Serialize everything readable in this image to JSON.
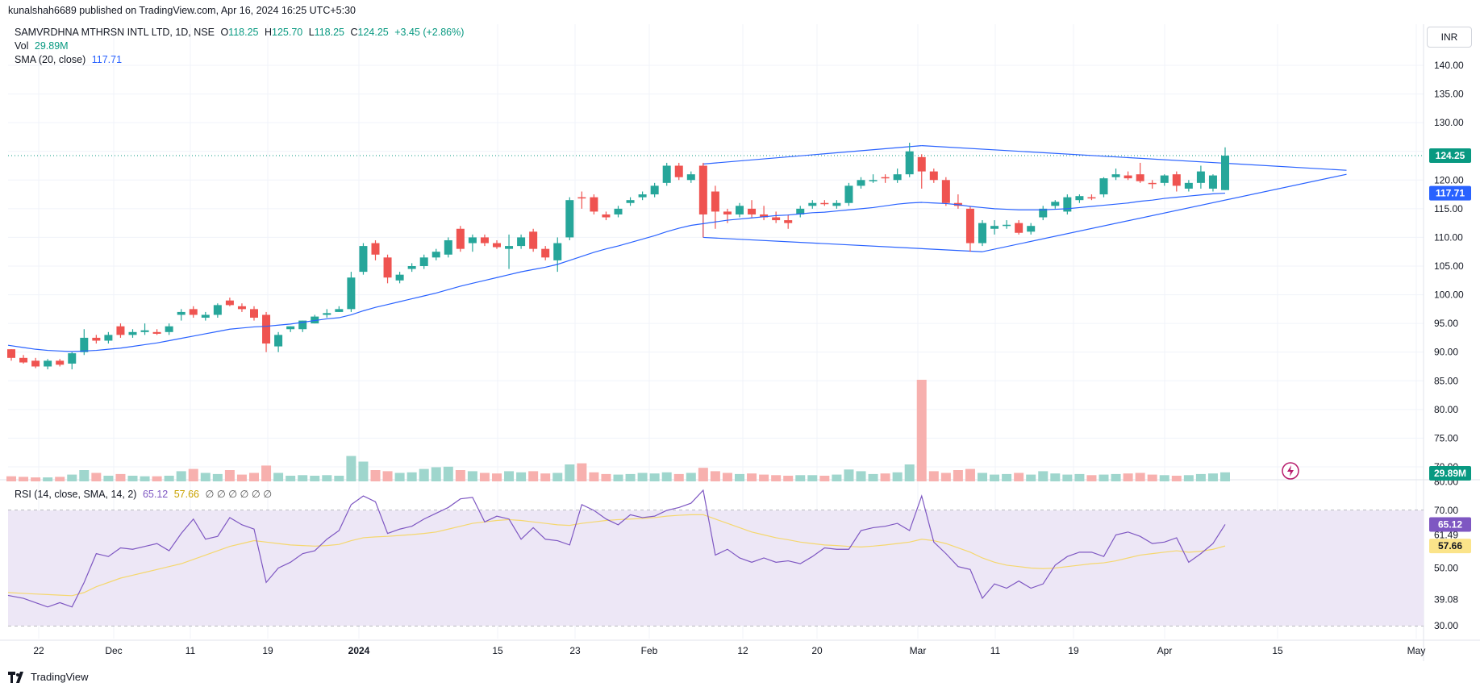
{
  "header": {
    "published": "kunalshah6689 published on TradingView.com, Apr 16, 2024 16:25 UTC+5:30",
    "unit_button": "INR",
    "brand": "TradingView"
  },
  "legend": {
    "symbol": "SAMVRDHNA MTHRSN INTL LTD, 1D, NSE",
    "o_label": "O",
    "o_value": "118.25",
    "h_label": "H",
    "h_value": "125.70",
    "l_label": "L",
    "l_value": "118.25",
    "c_label": "C",
    "c_value": "124.25",
    "change": "+3.45 (+2.86%)",
    "vol_label": "Vol",
    "vol_value": "29.89M",
    "sma_label": "SMA (20, close)",
    "sma_value": "117.71",
    "rsi_label": "RSI (14, close, SMA, 14, 2)",
    "rsi_value": "65.12",
    "rsi_sma_value": "57.66",
    "rsi_extra": "∅ ∅ ∅ ∅ ∅ ∅"
  },
  "colors": {
    "up": "#26a69a",
    "down": "#ef5350",
    "sma": "#2962ff",
    "rsi": "#7e57c2",
    "rsi_sma": "#fbe48a",
    "rsi_band": "#ede7f6",
    "vol_up": "#9fd6cd",
    "vol_down": "#f7b0ae",
    "trendline": "#2962ff"
  },
  "chart_data": {
    "type": "candlestick",
    "price_axis": {
      "ticks": [
        "140.00",
        "135.00",
        "130.00",
        "125.00",
        "120.00",
        "115.00",
        "110.00",
        "105.00",
        "100.00",
        "95.00",
        "90.00",
        "85.00",
        "80.00",
        "75.00",
        "70.00"
      ],
      "range": [
        70,
        142
      ]
    },
    "rsi_axis": {
      "ticks": [
        "80.00",
        "70.00",
        "61.49",
        "50.00",
        "39.08",
        "30.00"
      ],
      "bands": [
        30,
        50,
        70
      ]
    },
    "x_axis": {
      "ticks": [
        "22",
        "Dec",
        "11",
        "19",
        "2024",
        "15",
        "23",
        "Feb",
        "12",
        "20",
        "Mar",
        "11",
        "19",
        "Apr",
        "15",
        "May"
      ]
    },
    "last_price": "124.25",
    "last_sma": "117.71",
    "last_vol": "29.89M",
    "last_rsi": "65.12",
    "last_rsi_sma": "57.66",
    "rsi_mid_label": "61.49",
    "rsi_low_label": "39.08",
    "candles": [
      [
        90.5,
        90.5,
        88.5,
        89.0
      ],
      [
        89.0,
        89.5,
        88.0,
        88.2
      ],
      [
        88.5,
        89.0,
        87.2,
        87.5
      ],
      [
        87.5,
        88.8,
        87.0,
        88.5
      ],
      [
        88.5,
        88.8,
        87.5,
        87.8
      ],
      [
        88.0,
        90.0,
        87.0,
        89.8
      ],
      [
        90.0,
        94.0,
        89.5,
        92.5
      ],
      [
        92.5,
        93.0,
        91.5,
        92.0
      ],
      [
        92.0,
        93.5,
        91.5,
        93.0
      ],
      [
        94.5,
        95.0,
        92.5,
        93.0
      ],
      [
        93.0,
        94.0,
        92.5,
        93.5
      ],
      [
        93.5,
        95.0,
        93.0,
        93.8
      ],
      [
        93.5,
        94.0,
        93.0,
        93.2
      ],
      [
        93.5,
        95.0,
        93.0,
        94.5
      ],
      [
        96.5,
        97.5,
        95.5,
        97.0
      ],
      [
        97.5,
        98.0,
        96.0,
        96.5
      ],
      [
        96.0,
        97.0,
        95.5,
        96.5
      ],
      [
        96.5,
        98.5,
        96.0,
        98.2
      ],
      [
        99.0,
        99.5,
        98.0,
        98.2
      ],
      [
        98.0,
        98.5,
        97.0,
        97.5
      ],
      [
        97.5,
        98.0,
        95.5,
        96.0
      ],
      [
        96.5,
        97.0,
        90.0,
        91.5
      ],
      [
        91.0,
        93.5,
        90.0,
        93.0
      ],
      [
        94.0,
        94.5,
        93.5,
        94.5
      ],
      [
        94.0,
        95.5,
        93.5,
        95.5
      ],
      [
        95.0,
        96.5,
        95.0,
        96.2
      ],
      [
        96.5,
        97.5,
        96.0,
        96.8
      ],
      [
        97.0,
        98.0,
        97.0,
        97.5
      ],
      [
        97.5,
        104.0,
        97.0,
        103.0
      ],
      [
        104.0,
        109.0,
        103.5,
        108.5
      ],
      [
        109.0,
        109.5,
        106.0,
        107.0
      ],
      [
        106.5,
        107.0,
        102.0,
        103.0
      ],
      [
        102.5,
        104.0,
        102.0,
        103.5
      ],
      [
        104.5,
        105.5,
        104.0,
        105.0
      ],
      [
        105.0,
        107.0,
        104.5,
        106.5
      ],
      [
        106.5,
        108.0,
        106.0,
        107.5
      ],
      [
        107.0,
        110.0,
        106.5,
        109.5
      ],
      [
        111.5,
        112.0,
        107.5,
        108.0
      ],
      [
        109.0,
        110.5,
        107.5,
        110.0
      ],
      [
        110.0,
        110.5,
        108.5,
        109.0
      ],
      [
        109.0,
        109.5,
        108.0,
        108.3
      ],
      [
        108.0,
        110.5,
        104.5,
        108.5
      ],
      [
        108.5,
        110.5,
        108.0,
        110.0
      ],
      [
        111.0,
        111.5,
        107.5,
        108.0
      ],
      [
        108.0,
        108.5,
        106.0,
        106.5
      ],
      [
        106.0,
        110.0,
        104.0,
        109.0
      ],
      [
        110.0,
        117.0,
        109.5,
        116.5
      ],
      [
        117.0,
        118.0,
        115.0,
        116.8
      ],
      [
        117.0,
        117.5,
        114.0,
        114.5
      ],
      [
        114.0,
        114.5,
        113.0,
        113.5
      ],
      [
        114.0,
        115.5,
        113.5,
        115.0
      ],
      [
        116.0,
        117.0,
        115.5,
        116.5
      ],
      [
        117.0,
        118.0,
        116.5,
        117.5
      ],
      [
        117.5,
        119.5,
        117.0,
        119.0
      ],
      [
        119.5,
        123.0,
        119.0,
        122.5
      ],
      [
        122.5,
        123.0,
        120.0,
        120.5
      ],
      [
        120.0,
        121.5,
        119.5,
        121.0
      ],
      [
        122.5,
        123.0,
        110.0,
        114.0
      ],
      [
        118.0,
        119.0,
        111.5,
        114.5
      ],
      [
        114.5,
        115.0,
        112.5,
        114.0
      ],
      [
        114.0,
        116.0,
        113.5,
        115.5
      ],
      [
        115.0,
        116.5,
        113.5,
        114.0
      ],
      [
        114.0,
        115.5,
        113.0,
        113.5
      ],
      [
        113.5,
        114.5,
        112.5,
        113.0
      ],
      [
        113.0,
        114.0,
        111.5,
        112.5
      ],
      [
        114.0,
        115.5,
        113.5,
        115.0
      ],
      [
        115.5,
        116.5,
        115.0,
        116.0
      ],
      [
        116.0,
        116.5,
        115.5,
        115.8
      ],
      [
        115.5,
        116.5,
        115.0,
        116.0
      ],
      [
        116.0,
        119.5,
        115.5,
        119.0
      ],
      [
        119.0,
        120.5,
        118.5,
        120.0
      ],
      [
        120.0,
        121.0,
        119.5,
        120.0
      ],
      [
        120.5,
        121.0,
        119.5,
        120.3
      ],
      [
        120.0,
        122.0,
        119.5,
        121.0
      ],
      [
        121.0,
        126.5,
        120.5,
        125.0
      ],
      [
        124.0,
        124.5,
        118.5,
        121.5
      ],
      [
        121.5,
        122.0,
        119.5,
        120.0
      ],
      [
        120.0,
        120.5,
        115.5,
        116.0
      ],
      [
        116.0,
        117.5,
        115.0,
        115.5
      ],
      [
        115.0,
        115.5,
        107.5,
        109.0
      ],
      [
        109.0,
        113.0,
        108.5,
        112.5
      ],
      [
        111.5,
        113.0,
        110.5,
        112.0
      ],
      [
        112.0,
        113.0,
        111.5,
        112.2
      ],
      [
        112.5,
        113.0,
        110.5,
        110.8
      ],
      [
        111.0,
        112.5,
        110.5,
        112.0
      ],
      [
        113.5,
        115.5,
        113.0,
        115.0
      ],
      [
        115.5,
        116.5,
        115.0,
        116.2
      ],
      [
        114.5,
        117.5,
        114.0,
        117.0
      ],
      [
        116.5,
        117.5,
        116.0,
        117.2
      ],
      [
        117.0,
        117.5,
        116.5,
        116.8
      ],
      [
        117.5,
        120.5,
        117.0,
        120.3
      ],
      [
        120.5,
        122.0,
        120.0,
        121.0
      ],
      [
        120.8,
        121.5,
        120.0,
        120.3
      ],
      [
        121.0,
        123.0,
        119.5,
        119.8
      ],
      [
        119.5,
        120.0,
        118.5,
        119.3
      ],
      [
        119.5,
        121.0,
        119.0,
        120.8
      ],
      [
        121.0,
        121.5,
        118.0,
        119.0
      ],
      [
        118.5,
        120.0,
        118.0,
        119.5
      ],
      [
        119.5,
        122.5,
        118.5,
        121.5
      ],
      [
        118.5,
        121.0,
        118.0,
        120.8
      ],
      [
        118.25,
        125.7,
        118.25,
        124.25
      ]
    ],
    "sma": [
      91.2,
      90.8,
      90.5,
      90.3,
      90.2,
      90.1,
      90.2,
      90.3,
      90.5,
      90.7,
      91.0,
      91.3,
      91.6,
      92.0,
      92.4,
      92.8,
      93.2,
      93.6,
      94.0,
      94.2,
      94.4,
      94.5,
      94.7,
      94.9,
      95.2,
      95.5,
      95.8,
      96.0,
      96.5,
      97.2,
      97.8,
      98.3,
      98.8,
      99.3,
      99.8,
      100.3,
      100.9,
      101.5,
      102.0,
      102.5,
      103.0,
      103.5,
      104.0,
      104.4,
      104.8,
      105.3,
      106.0,
      106.7,
      107.4,
      108.0,
      108.5,
      109.1,
      109.7,
      110.3,
      111.0,
      111.6,
      112.1,
      112.4,
      112.7,
      113.0,
      113.2,
      113.4,
      113.6,
      113.8,
      113.9,
      114.1,
      114.3,
      114.4,
      114.6,
      114.8,
      115.0,
      115.2,
      115.5,
      115.8,
      116.0,
      116.1,
      116.0,
      115.9,
      115.7,
      115.4,
      115.2,
      115.0,
      114.9,
      114.8,
      114.8,
      114.8,
      114.9,
      115.0,
      115.2,
      115.4,
      115.6,
      115.8,
      116.0,
      116.3,
      116.5,
      116.8,
      117.0,
      117.2,
      117.4,
      117.6,
      117.71
    ],
    "volume": [
      0.9,
      0.8,
      0.7,
      0.7,
      0.8,
      1.2,
      2.0,
      1.5,
      1.0,
      1.3,
      1.0,
      0.9,
      0.9,
      1.0,
      1.8,
      2.2,
      1.5,
      1.3,
      2.0,
      1.2,
      1.5,
      2.8,
      1.5,
      1.0,
      1.1,
      1.0,
      1.1,
      1.0,
      4.5,
      3.5,
      2.0,
      1.8,
      1.5,
      1.6,
      2.2,
      2.5,
      2.6,
      2.0,
      1.8,
      1.5,
      1.4,
      1.8,
      1.6,
      1.8,
      1.4,
      1.5,
      3.0,
      3.2,
      1.6,
      1.3,
      1.2,
      1.3,
      1.5,
      1.4,
      1.6,
      1.3,
      1.5,
      2.4,
      1.8,
      1.5,
      1.3,
      1.4,
      1.2,
      1.1,
      1.0,
      1.1,
      1.1,
      1.0,
      1.2,
      2.1,
      1.8,
      1.3,
      1.4,
      1.6,
      3.0,
      18.0,
      1.8,
      1.5,
      2.0,
      2.2,
      1.5,
      1.2,
      1.3,
      1.5,
      1.2,
      1.8,
      1.4,
      1.2,
      1.3,
      1.1,
      1.2,
      1.3,
      1.4,
      1.5,
      1.2,
      1.1,
      1.0,
      1.1,
      1.3,
      1.4,
      1.6
    ],
    "rsi": [
      40.5,
      39.5,
      38.0,
      36.5,
      38.0,
      36.5,
      45.0,
      55.0,
      54.0,
      57.0,
      56.5,
      57.5,
      58.5,
      56.0,
      62.0,
      67.0,
      60.0,
      61.0,
      67.5,
      65.0,
      63.5,
      45.0,
      50.0,
      52.0,
      55.0,
      56.0,
      60.0,
      63.0,
      72.0,
      75.0,
      73.0,
      62.0,
      63.5,
      64.5,
      67.0,
      69.0,
      71.0,
      74.0,
      74.5,
      66.0,
      68.0,
      67.0,
      60.0,
      64.0,
      60.0,
      59.5,
      58.0,
      72.0,
      70.0,
      67.0,
      65.0,
      68.5,
      67.5,
      68.0,
      70.0,
      71.0,
      72.5,
      77.0,
      54.5,
      56.5,
      53.5,
      52.0,
      53.5,
      52.0,
      52.5,
      51.5,
      54.0,
      57.0,
      56.5,
      56.5,
      63.0,
      64.0,
      64.5,
      65.5,
      63.0,
      75.0,
      59.0,
      55.0,
      50.5,
      49.5,
      39.5,
      44.5,
      43.0,
      45.5,
      43.0,
      44.5,
      51.0,
      54.0,
      55.5,
      55.5,
      54.0,
      61.5,
      62.5,
      61.0,
      58.5,
      59.0,
      60.5,
      52.0,
      55.0,
      58.5,
      65.12
    ],
    "rsi_sma": [
      41.5,
      41.2,
      41.0,
      40.8,
      40.6,
      40.4,
      41.5,
      43.5,
      45.0,
      46.5,
      47.5,
      48.5,
      49.5,
      50.5,
      51.5,
      53.0,
      54.5,
      56.0,
      57.5,
      58.5,
      59.5,
      59.0,
      58.5,
      58.0,
      57.8,
      57.6,
      57.8,
      58.2,
      59.5,
      60.5,
      60.8,
      61.0,
      61.3,
      61.6,
      62.0,
      62.5,
      63.5,
      64.5,
      65.5,
      66.0,
      66.5,
      66.8,
      66.5,
      66.0,
      65.5,
      65.0,
      64.8,
      65.5,
      66.0,
      66.5,
      66.8,
      67.0,
      67.2,
      67.5,
      68.0,
      68.3,
      68.5,
      68.5,
      67.0,
      65.5,
      64.0,
      62.5,
      61.5,
      60.5,
      59.8,
      59.0,
      58.5,
      58.0,
      57.8,
      57.5,
      57.3,
      57.6,
      58.0,
      58.5,
      59.0,
      60.0,
      59.5,
      58.5,
      57.0,
      55.5,
      53.5,
      52.0,
      51.0,
      50.5,
      50.0,
      49.8,
      50.0,
      50.5,
      51.0,
      51.5,
      51.8,
      52.5,
      53.5,
      54.5,
      55.0,
      55.5,
      56.0,
      55.5,
      55.8,
      56.5,
      57.66
    ]
  }
}
